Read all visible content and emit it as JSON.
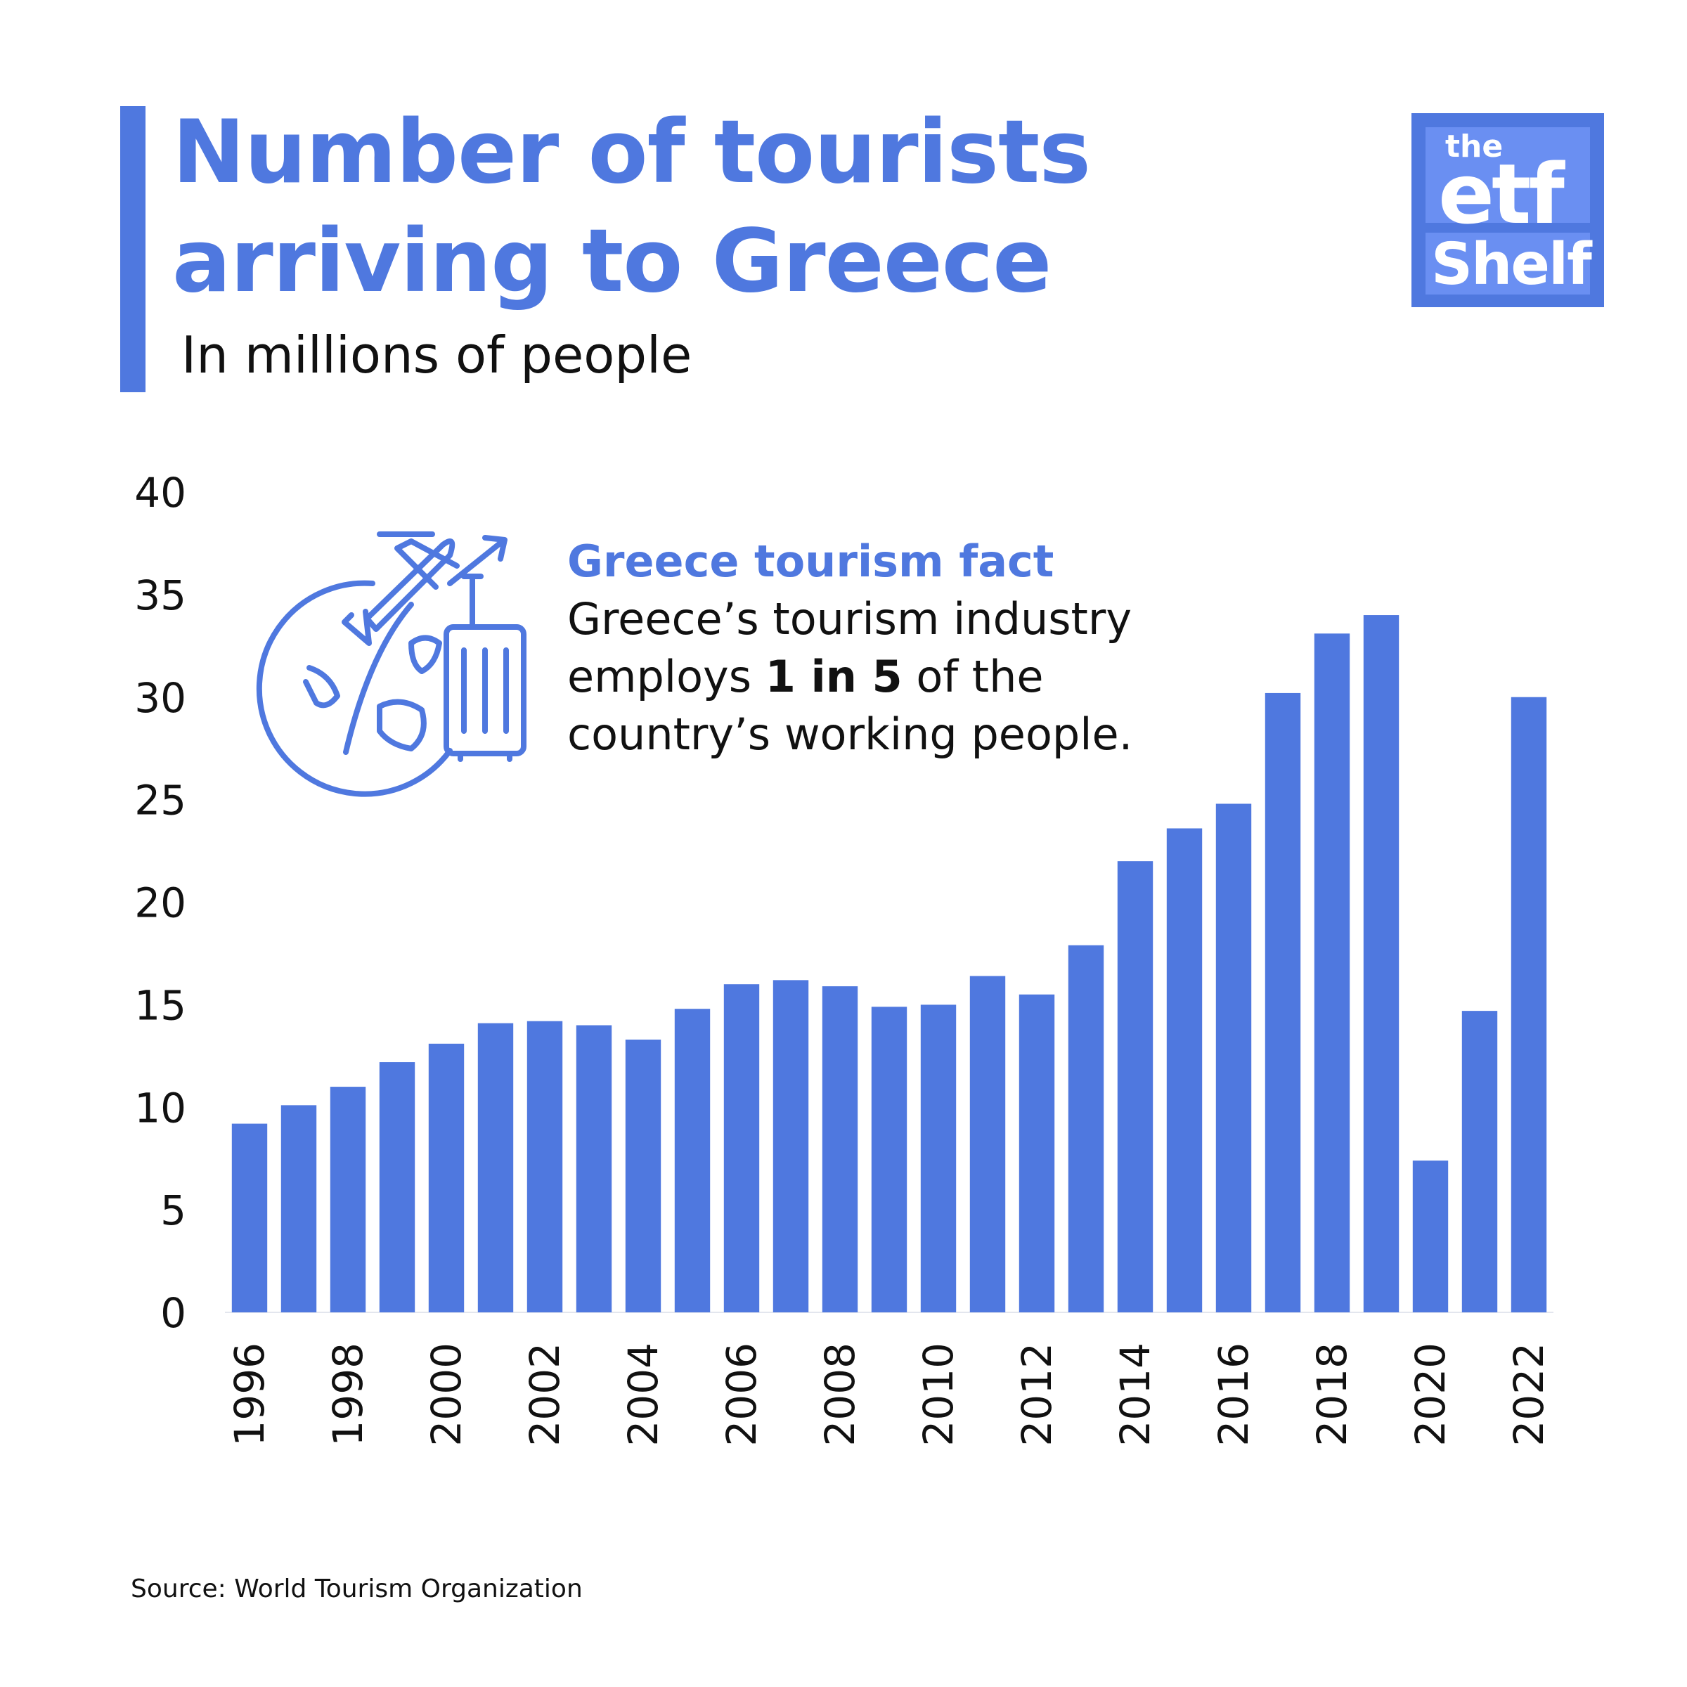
{
  "header": {
    "title": "Number of tourists\narriving to Greece",
    "subtitle": "In millions of people"
  },
  "logo": {
    "line1": "the",
    "line2": "etf",
    "line3": "Shelf"
  },
  "fact": {
    "heading": "Greece tourism fact",
    "line1": "Greece’s tourism industry",
    "line2_pre": "employs ",
    "line2_bold": "1 in 5",
    "line2_post": " of the",
    "line3": "country’s working people.",
    "icon": "globe-plane-suitcase-icon"
  },
  "source": "Source: World Tourism Organization",
  "colors": {
    "accent": "#4f78df",
    "bar": "#4f78df",
    "logo_panel": "#6a8ff2"
  },
  "chart_data": {
    "type": "bar",
    "title": "Number of tourists arriving to Greece",
    "subtitle": "In millions of people",
    "xlabel": "",
    "ylabel": "",
    "ylim": [
      0,
      40
    ],
    "yticks": [
      0,
      5,
      10,
      15,
      20,
      25,
      30,
      35,
      40
    ],
    "grid": false,
    "legend": "none",
    "categories": [
      "1996",
      "1997",
      "1998",
      "1999",
      "2000",
      "2001",
      "2002",
      "2003",
      "2004",
      "2005",
      "2006",
      "2007",
      "2008",
      "2009",
      "2010",
      "2011",
      "2012",
      "2013",
      "2014",
      "2015",
      "2016",
      "2017",
      "2018",
      "2019",
      "2020",
      "2021",
      "2022"
    ],
    "xtick_labels": [
      "1996",
      "1998",
      "2000",
      "2002",
      "2004",
      "2006",
      "2008",
      "2010",
      "2012",
      "2014",
      "2016",
      "2018",
      "2020",
      "2022"
    ],
    "values": [
      9.2,
      10.1,
      11.0,
      12.2,
      13.1,
      14.1,
      14.2,
      14.0,
      13.3,
      14.8,
      16.0,
      16.2,
      15.9,
      14.9,
      15.0,
      16.4,
      15.5,
      17.9,
      22.0,
      23.6,
      24.8,
      30.2,
      33.1,
      34.0,
      7.4,
      14.7,
      30.0
    ]
  }
}
